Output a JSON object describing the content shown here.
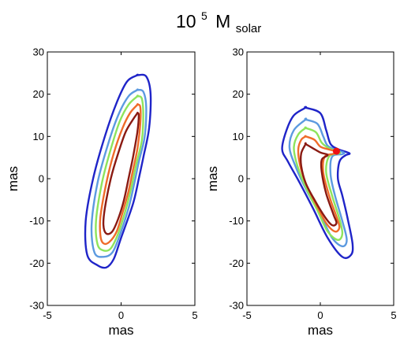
{
  "figure": {
    "title_base": "10",
    "title_exponent": "5",
    "title_unit": "M",
    "title_subscript": "solar"
  },
  "chart_data": [
    {
      "type": "contour",
      "title": "",
      "xlabel": "mas",
      "ylabel": "mas",
      "xlim": [
        -5,
        5
      ],
      "ylim": [
        -30,
        30
      ],
      "xticks": [
        -5,
        0,
        5
      ],
      "yticks": [
        -30,
        -20,
        -10,
        0,
        10,
        20,
        30
      ],
      "grid": false,
      "contours": [
        {
          "level": 1,
          "color": "#1f24c8",
          "points": [
            [
              1.1,
              24.5
            ],
            [
              1.7,
              24.2
            ],
            [
              2.0,
              20
            ],
            [
              1.9,
              12
            ],
            [
              1.5,
              5
            ],
            [
              1.2,
              0
            ],
            [
              0.8,
              -6
            ],
            [
              0.0,
              -14
            ],
            [
              -0.5,
              -19
            ],
            [
              -1.0,
              -21
            ],
            [
              -1.6,
              -20.5
            ],
            [
              -2.3,
              -18
            ],
            [
              -2.4,
              -10
            ],
            [
              -1.9,
              0
            ],
            [
              -1.1,
              10
            ],
            [
              -0.3,
              18
            ],
            [
              0.4,
              23
            ],
            [
              1.1,
              24.5
            ]
          ]
        },
        {
          "level": 2,
          "color": "#5c9ae0",
          "points": [
            [
              1.1,
              21
            ],
            [
              1.5,
              20.6
            ],
            [
              1.7,
              17
            ],
            [
              1.6,
              10
            ],
            [
              1.2,
              4
            ],
            [
              0.9,
              -1
            ],
            [
              0.5,
              -7
            ],
            [
              -0.1,
              -13.5
            ],
            [
              -0.6,
              -17.5
            ],
            [
              -1.2,
              -18.5
            ],
            [
              -1.8,
              -17.5
            ],
            [
              -2.0,
              -11
            ],
            [
              -1.6,
              -1
            ],
            [
              -0.9,
              8
            ],
            [
              -0.2,
              15
            ],
            [
              0.5,
              19.5
            ],
            [
              1.1,
              21
            ]
          ]
        },
        {
          "level": 3,
          "color": "#8ee45c",
          "points": [
            [
              1.1,
              19.5
            ],
            [
              1.4,
              19
            ],
            [
              1.5,
              15
            ],
            [
              1.4,
              9
            ],
            [
              1.0,
              3
            ],
            [
              0.7,
              -2
            ],
            [
              0.3,
              -7.5
            ],
            [
              -0.2,
              -13
            ],
            [
              -0.7,
              -16.5
            ],
            [
              -1.2,
              -17
            ],
            [
              -1.6,
              -15.5
            ],
            [
              -1.7,
              -10
            ],
            [
              -1.3,
              -1
            ],
            [
              -0.7,
              7
            ],
            [
              -0.1,
              13.5
            ],
            [
              0.5,
              17.5
            ],
            [
              1.1,
              19.5
            ]
          ]
        },
        {
          "level": 4,
          "color": "#ef6c2a",
          "points": [
            [
              1.1,
              17.5
            ],
            [
              1.3,
              17
            ],
            [
              1.3,
              13
            ],
            [
              1.1,
              7
            ],
            [
              0.8,
              2
            ],
            [
              0.5,
              -3
            ],
            [
              0.1,
              -8
            ],
            [
              -0.3,
              -12.5
            ],
            [
              -0.8,
              -15
            ],
            [
              -1.2,
              -15.3
            ],
            [
              -1.4,
              -13.5
            ],
            [
              -1.4,
              -9
            ],
            [
              -1.0,
              -1
            ],
            [
              -0.5,
              6
            ],
            [
              0.1,
              12
            ],
            [
              0.6,
              15.5
            ],
            [
              1.1,
              17.5
            ]
          ]
        },
        {
          "level": 5,
          "color": "#8a1a12",
          "points": [
            [
              1.1,
              15.5
            ],
            [
              1.2,
              15
            ],
            [
              1.1,
              11
            ],
            [
              0.8,
              5
            ],
            [
              0.5,
              0
            ],
            [
              0.2,
              -5
            ],
            [
              -0.2,
              -9.5
            ],
            [
              -0.6,
              -12.5
            ],
            [
              -1.0,
              -13
            ],
            [
              -1.2,
              -11
            ],
            [
              -1.1,
              -7
            ],
            [
              -0.7,
              0
            ],
            [
              -0.2,
              6
            ],
            [
              0.3,
              11
            ],
            [
              0.8,
              14
            ],
            [
              1.1,
              15.5
            ]
          ]
        }
      ],
      "markers": []
    },
    {
      "type": "contour",
      "title": "",
      "xlabel": "mas",
      "ylabel": "mas",
      "xlim": [
        -5,
        5
      ],
      "ylim": [
        -30,
        30
      ],
      "xticks": [
        -5,
        0,
        5
      ],
      "yticks": [
        -30,
        -20,
        -10,
        0,
        10,
        20,
        30
      ],
      "grid": false,
      "contours": [
        {
          "level": 1,
          "color": "#1f24c8",
          "points": [
            [
              -1.0,
              16.8
            ],
            [
              0.0,
              15.5
            ],
            [
              0.4,
              11.5
            ],
            [
              0.7,
              8.2
            ],
            [
              1.2,
              7
            ],
            [
              1.8,
              6.3
            ],
            [
              2.0,
              5.9
            ],
            [
              1.7,
              5.5
            ],
            [
              1.3,
              4
            ],
            [
              1.2,
              0
            ],
            [
              1.5,
              -4
            ],
            [
              1.9,
              -10
            ],
            [
              2.2,
              -15.5
            ],
            [
              2.1,
              -18
            ],
            [
              1.5,
              -18.5
            ],
            [
              0.5,
              -14
            ],
            [
              -0.5,
              -7
            ],
            [
              -1.4,
              -1
            ],
            [
              -2.2,
              4
            ],
            [
              -2.6,
              7
            ],
            [
              -2.3,
              11.5
            ],
            [
              -1.8,
              15
            ],
            [
              -1.0,
              16.8
            ]
          ]
        },
        {
          "level": 2,
          "color": "#5c9ae0",
          "points": [
            [
              -1.0,
              14
            ],
            [
              -0.2,
              13
            ],
            [
              0.2,
              10
            ],
            [
              0.5,
              7.8
            ],
            [
              1.1,
              6.8
            ],
            [
              1.6,
              6.2
            ],
            [
              1.5,
              5.8
            ],
            [
              0.8,
              5.2
            ],
            [
              0.7,
              1
            ],
            [
              1.0,
              -4
            ],
            [
              1.5,
              -10
            ],
            [
              1.8,
              -14.5
            ],
            [
              1.5,
              -16
            ],
            [
              0.8,
              -14
            ],
            [
              0.0,
              -8.5
            ],
            [
              -0.9,
              -3
            ],
            [
              -1.7,
              3
            ],
            [
              -2.1,
              7.5
            ],
            [
              -1.8,
              11.5
            ],
            [
              -1.0,
              14
            ]
          ]
        },
        {
          "level": 3,
          "color": "#8ee45c",
          "points": [
            [
              -1.0,
              12
            ],
            [
              -0.3,
              11
            ],
            [
              0.1,
              8.5
            ],
            [
              0.6,
              7.2
            ],
            [
              1.2,
              6.4
            ],
            [
              1.3,
              6
            ],
            [
              0.6,
              5.3
            ],
            [
              0.4,
              1.5
            ],
            [
              0.8,
              -4
            ],
            [
              1.3,
              -9.5
            ],
            [
              1.5,
              -13
            ],
            [
              1.2,
              -14.5
            ],
            [
              0.5,
              -12.5
            ],
            [
              -0.2,
              -7.5
            ],
            [
              -1.0,
              -2
            ],
            [
              -1.6,
              3.5
            ],
            [
              -1.8,
              7.5
            ],
            [
              -1.5,
              10.5
            ],
            [
              -1.0,
              12
            ]
          ]
        },
        {
          "level": 4,
          "color": "#ef6c2a",
          "points": [
            [
              -1.0,
              10
            ],
            [
              -0.4,
              9.2
            ],
            [
              0.0,
              7.6
            ],
            [
              0.6,
              6.9
            ],
            [
              1.1,
              6.4
            ],
            [
              0.9,
              5.9
            ],
            [
              0.3,
              5.2
            ],
            [
              0.2,
              1.5
            ],
            [
              0.6,
              -4
            ],
            [
              1.1,
              -9
            ],
            [
              1.3,
              -11.5
            ],
            [
              1.0,
              -12.5
            ],
            [
              0.4,
              -10.5
            ],
            [
              -0.3,
              -6
            ],
            [
              -1.0,
              -1
            ],
            [
              -1.4,
              3.5
            ],
            [
              -1.5,
              7
            ],
            [
              -1.3,
              9.2
            ],
            [
              -1.0,
              10
            ]
          ]
        },
        {
          "level": 5,
          "color": "#8a1a12",
          "points": [
            [
              -1.0,
              8.2
            ],
            [
              -0.5,
              7.2
            ],
            [
              0.0,
              6.2
            ],
            [
              0.5,
              5.6
            ],
            [
              0.1,
              4.5
            ],
            [
              0.1,
              1.5
            ],
            [
              0.4,
              -3.5
            ],
            [
              0.9,
              -8.5
            ],
            [
              1.1,
              -10.5
            ],
            [
              0.8,
              -11
            ],
            [
              0.3,
              -9
            ],
            [
              -0.4,
              -5
            ],
            [
              -1.0,
              -1
            ],
            [
              -1.3,
              3
            ],
            [
              -1.3,
              6
            ],
            [
              -1.0,
              8.2
            ]
          ]
        }
      ],
      "markers": [
        {
          "x": 1.1,
          "y": 6.5,
          "color": "#ee1111"
        }
      ]
    }
  ]
}
